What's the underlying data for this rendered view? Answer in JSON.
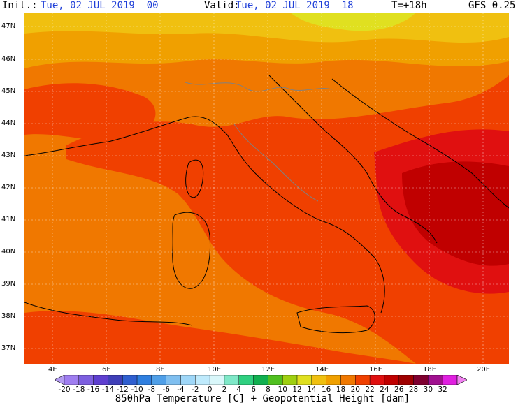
{
  "header": {
    "init_label": "Init.:",
    "init_value": "Tue, 02 JUL 2019  00",
    "valid_label": "Valid:",
    "valid_value": "Tue, 02 JUL 2019  18",
    "lead": "T=+18h",
    "model": "GFS 0.25"
  },
  "map": {
    "lat_labels": [
      "47N",
      "46N",
      "45N",
      "44N",
      "43N",
      "42N",
      "41N",
      "40N",
      "39N",
      "38N",
      "37N"
    ],
    "lon_labels": [
      "4E",
      "6E",
      "8E",
      "10E",
      "12E",
      "14E",
      "16E",
      "18E",
      "20E"
    ]
  },
  "colorbar": {
    "ticks": [
      "-20",
      "-18",
      "-16",
      "-14",
      "-12",
      "-10",
      "-8",
      "-6",
      "-4",
      "-2",
      "0",
      "2",
      "4",
      "6",
      "8",
      "10",
      "12",
      "14",
      "16",
      "18",
      "20",
      "22",
      "24",
      "26",
      "28",
      "30",
      "32"
    ],
    "colors": [
      "#b39cf0",
      "#9f7ef0",
      "#7d5fe0",
      "#5e3fd0",
      "#3f3fb8",
      "#2f5fd0",
      "#2f7fe0",
      "#4f9fe8",
      "#7fbff0",
      "#9fd7f8",
      "#bfeafc",
      "#d9f7fa",
      "#7fe8c8",
      "#2fd080",
      "#10b050",
      "#50c020",
      "#9fd010",
      "#e0e020",
      "#f0c010",
      "#f0a000",
      "#f07800",
      "#f04000",
      "#e01010",
      "#c00000",
      "#9f0000",
      "#7f0030",
      "#a0108f",
      "#e020e0",
      "#f080f0"
    ],
    "caption": "850hPa Temperature [C] + Geopotential Height [dam]"
  }
}
